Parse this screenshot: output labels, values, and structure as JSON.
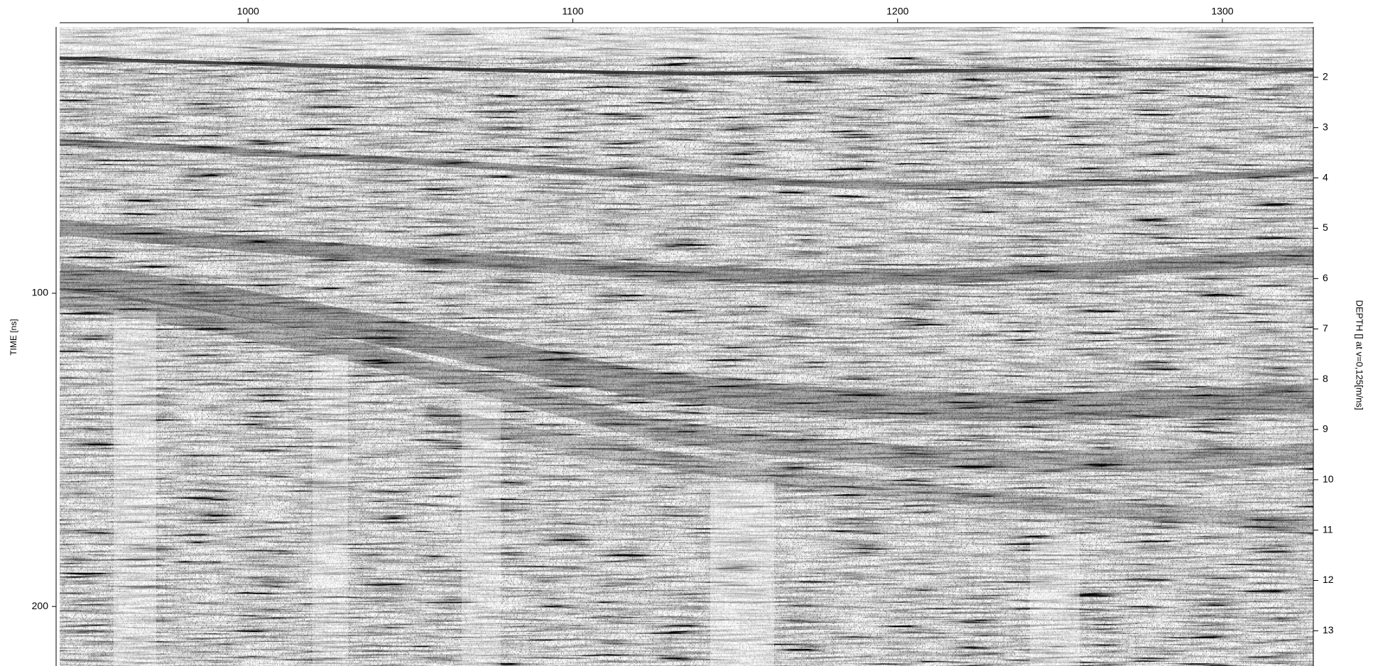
{
  "chart_data": {
    "type": "radargram",
    "xlim": [
      942,
      1328
    ],
    "xticks": [
      1000,
      1100,
      1200,
      1300
    ],
    "ylim": [
      15,
      219
    ],
    "yticks": [
      100,
      200
    ],
    "y_inverted": true,
    "ylabel": "TIME [ns]",
    "y2lim": [
      1,
      13.7
    ],
    "y2ticks": [
      2,
      3,
      4,
      5,
      6,
      7,
      8,
      9,
      10,
      11,
      12,
      13
    ],
    "y2label": "DEPTH [] at v=0,125[m/ns]"
  }
}
